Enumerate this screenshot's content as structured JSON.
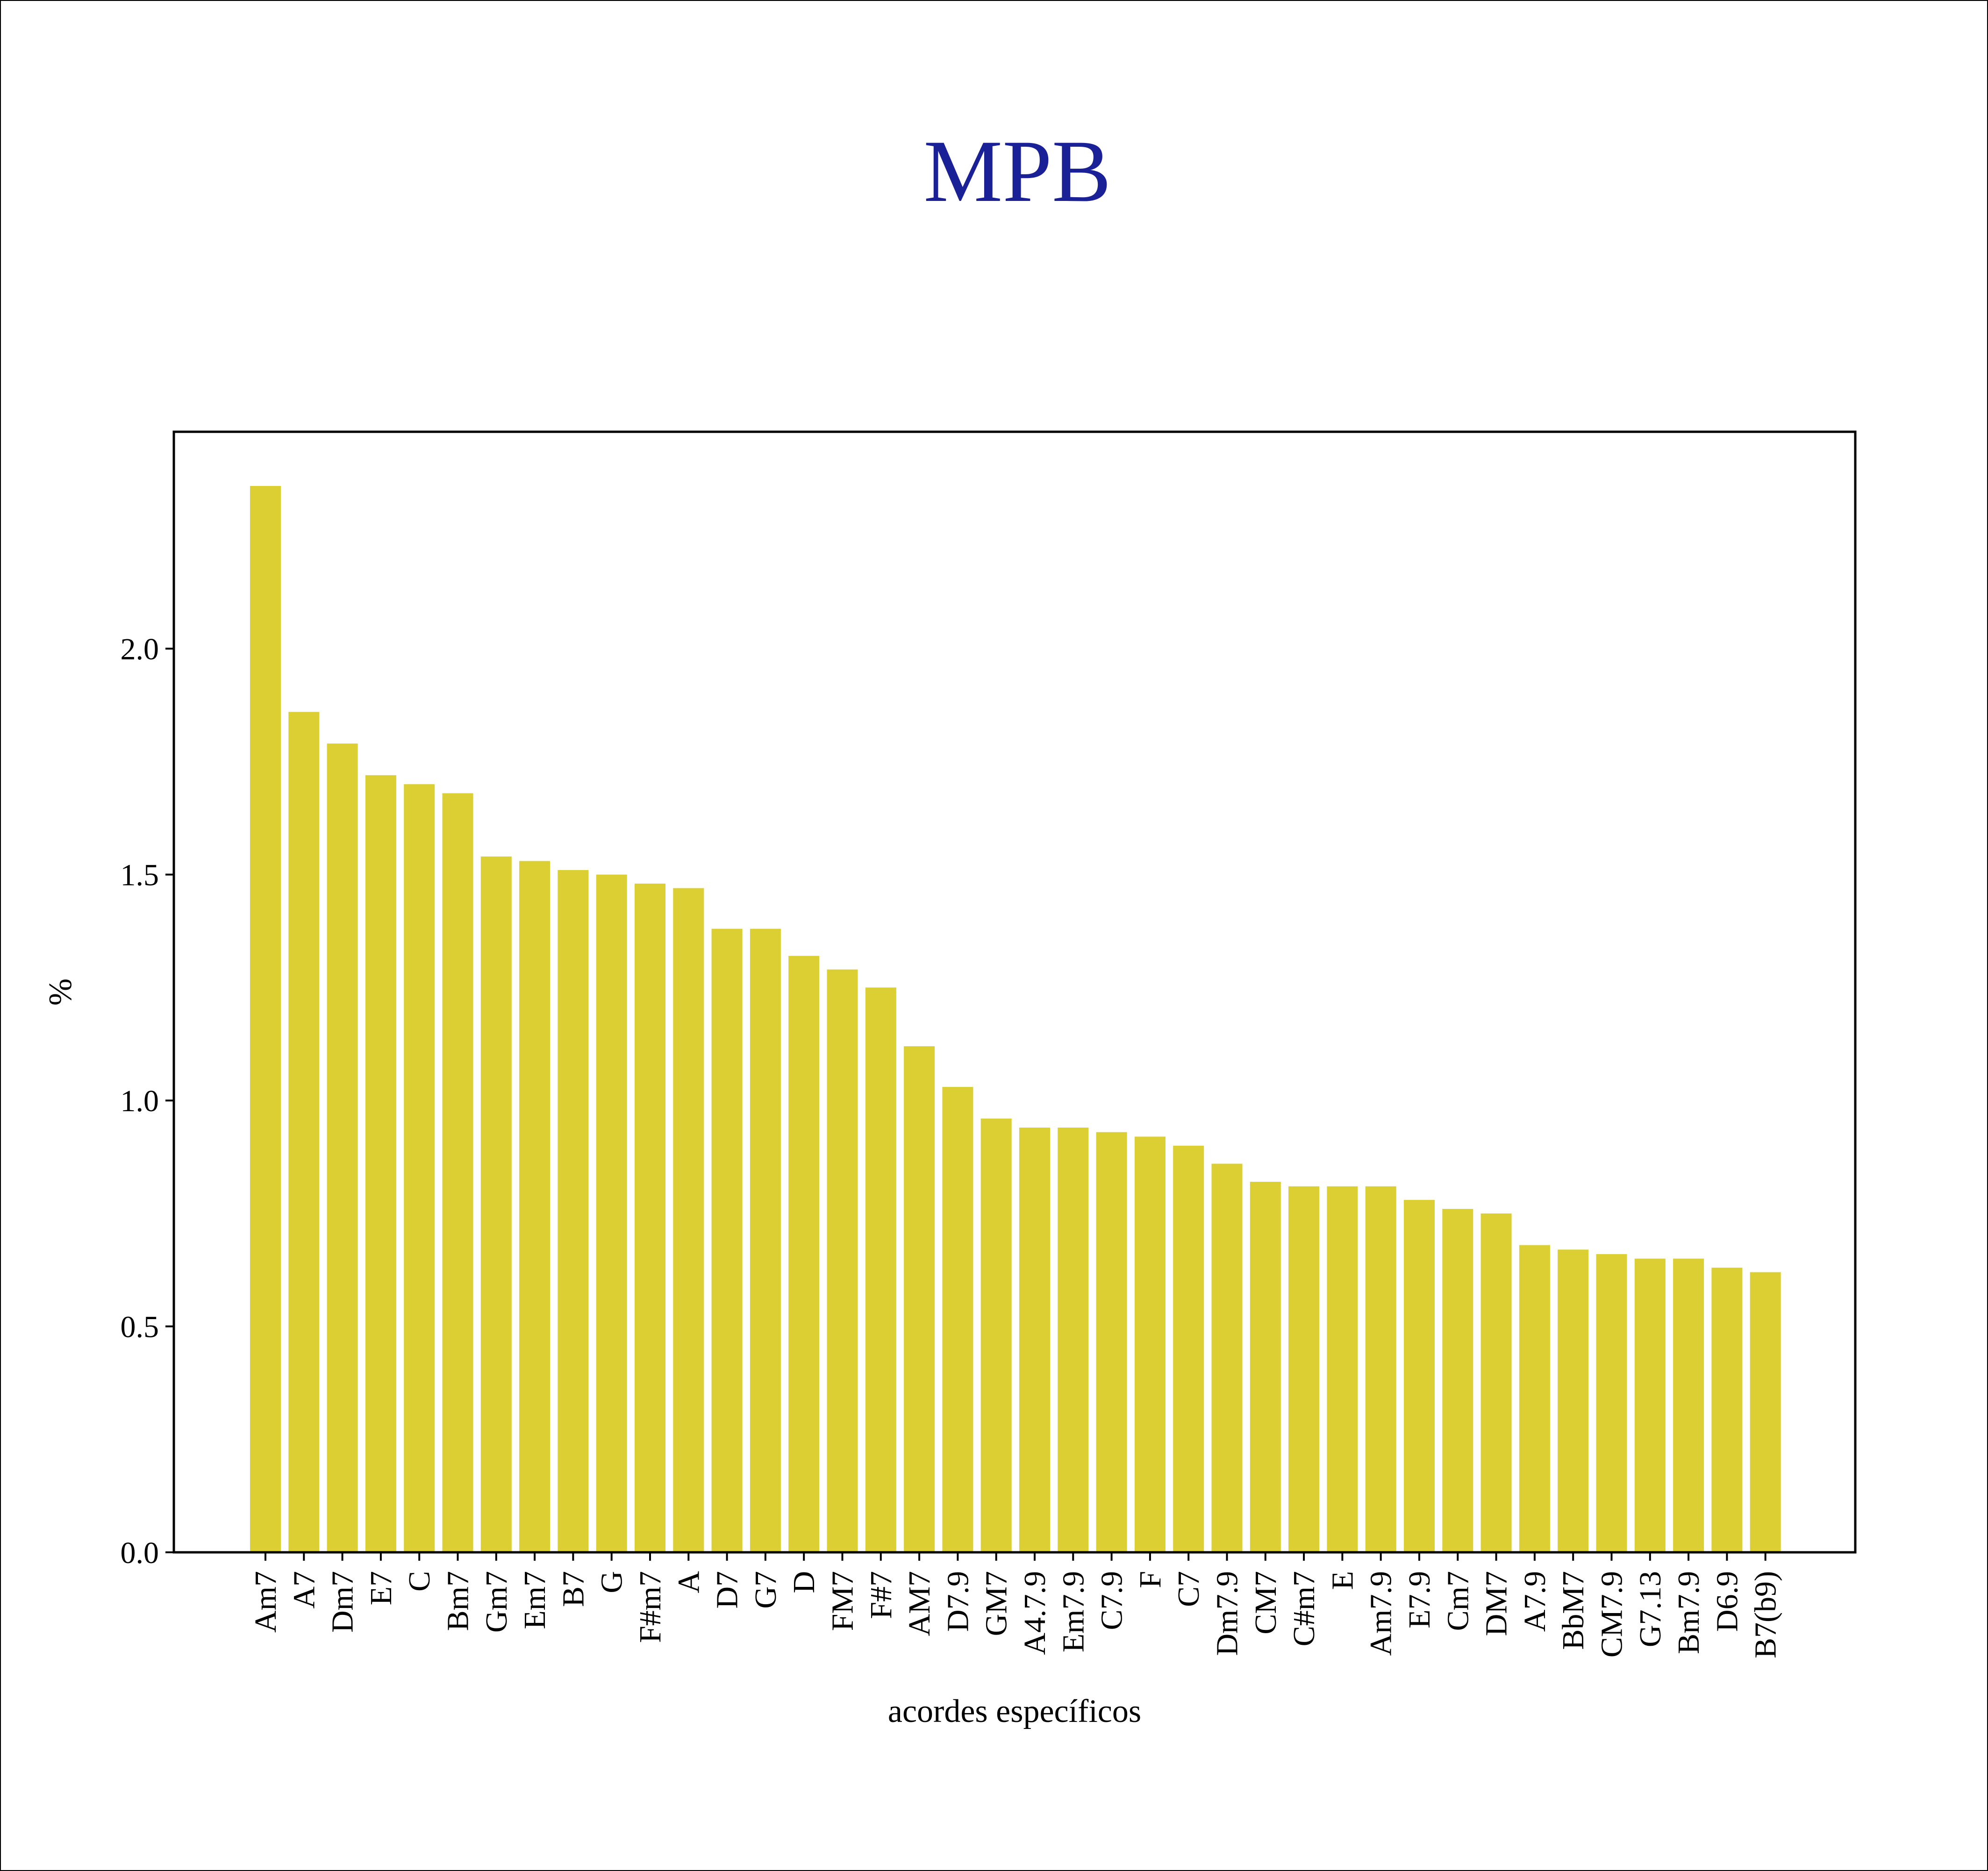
{
  "chart_data": {
    "type": "bar",
    "title": "MPB",
    "xlabel": "acordes específicos",
    "ylabel": "%",
    "ylim": [
      0,
      2.48
    ],
    "yticks": [
      0.0,
      0.5,
      1.0,
      1.5,
      2.0
    ],
    "grid": false,
    "colors": {
      "bar": "#dbcf33",
      "title": "#1a2196",
      "axis": "#000000"
    },
    "categories": [
      "Am7",
      "A7",
      "Dm7",
      "E7",
      "C",
      "Bm7",
      "Gm7",
      "Em7",
      "B7",
      "G",
      "F#m7",
      "A",
      "D7",
      "G7",
      "D",
      "FM7",
      "F#7",
      "AM7",
      "D7.9",
      "GM7",
      "A4.7.9",
      "Em7.9",
      "C7.9",
      "F",
      "C7",
      "Dm7.9",
      "CM7",
      "C#m7",
      "E",
      "Am7.9",
      "E7.9",
      "Cm7",
      "DM7",
      "A7.9",
      "BbM7",
      "CM7.9",
      "G7.13",
      "Bm7.9",
      "D6.9",
      "B7(b9)"
    ],
    "values": [
      2.36,
      1.86,
      1.79,
      1.72,
      1.7,
      1.68,
      1.54,
      1.53,
      1.51,
      1.5,
      1.48,
      1.47,
      1.38,
      1.38,
      1.32,
      1.29,
      1.25,
      1.12,
      1.03,
      0.96,
      0.94,
      0.94,
      0.93,
      0.92,
      0.9,
      0.86,
      0.82,
      0.81,
      0.81,
      0.81,
      0.78,
      0.76,
      0.75,
      0.68,
      0.67,
      0.66,
      0.65,
      0.65,
      0.63,
      0.62
    ]
  }
}
